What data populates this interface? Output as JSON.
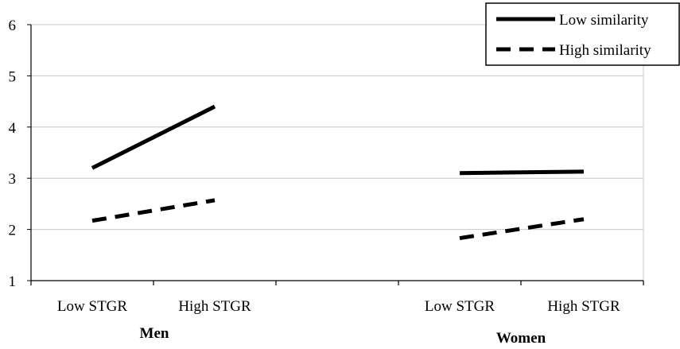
{
  "chart_data": {
    "type": "line",
    "title": "",
    "xlabel": "",
    "ylabel": "",
    "ylim": [
      1,
      6
    ],
    "yticks": [
      1,
      2,
      3,
      4,
      5,
      6
    ],
    "grid": "horizontal",
    "legend_placement": "top-right",
    "groups": [
      {
        "name": "Men",
        "categories": [
          "Low STGR",
          "High STGR"
        ]
      },
      {
        "name": "Women",
        "categories": [
          "Low STGR",
          "High STGR"
        ]
      }
    ],
    "series": [
      {
        "name": "Low similarity",
        "style": "solid",
        "color": "#000000",
        "segments": [
          {
            "group": "Men",
            "values": [
              3.2,
              4.4
            ]
          },
          {
            "group": "Women",
            "values": [
              3.1,
              3.13
            ]
          }
        ]
      },
      {
        "name": "High similarity",
        "style": "dashed",
        "color": "#000000",
        "segments": [
          {
            "group": "Men",
            "values": [
              2.17,
              2.57
            ]
          },
          {
            "group": "Women",
            "values": [
              1.83,
              2.2
            ]
          }
        ]
      }
    ]
  }
}
